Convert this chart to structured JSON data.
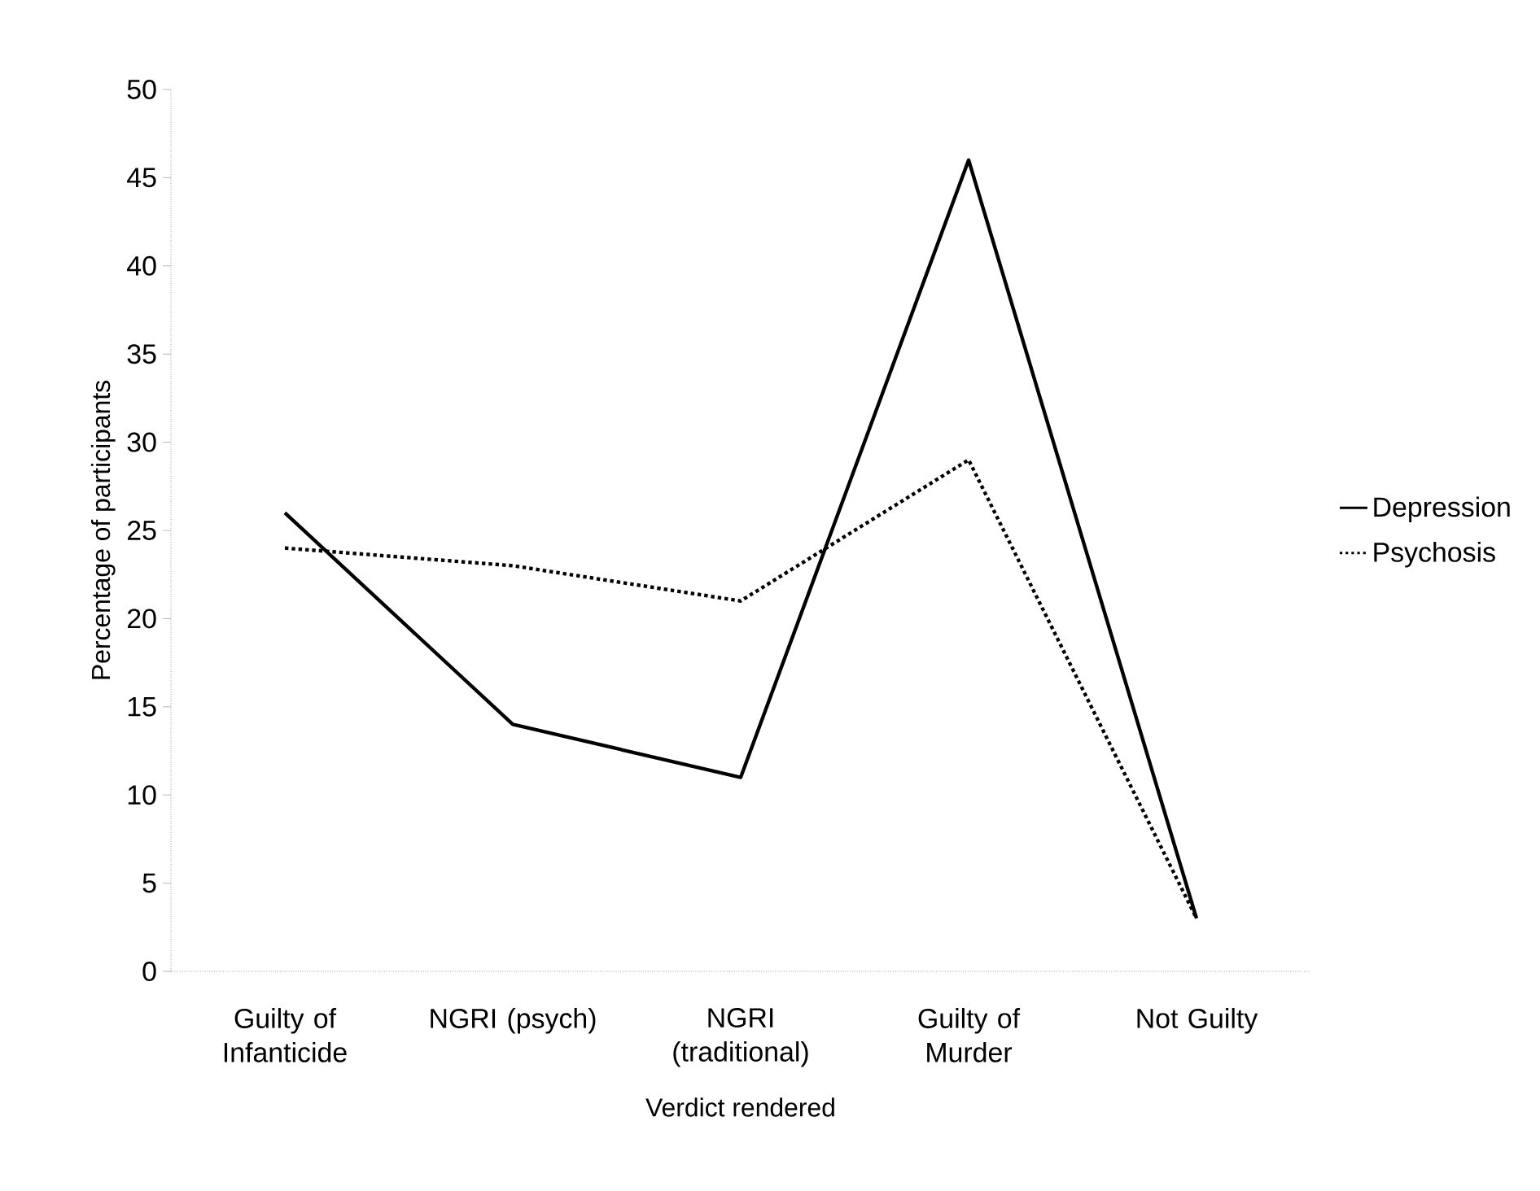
{
  "chart_data": {
    "type": "line",
    "xlabel": "Verdict rendered",
    "ylabel": "Percentage of participants",
    "categories": [
      "Guilty of Infanticide",
      "NGRI (psych)",
      "NGRI (traditional)",
      "Guilty of Murder",
      "Not Guilty"
    ],
    "series": [
      {
        "name": "Depression",
        "color": "#000000",
        "line_style": "solid",
        "values": [
          26,
          14,
          11,
          46,
          3
        ]
      },
      {
        "name": "Psychosis",
        "color": "#000000",
        "line_style": "dotted",
        "values": [
          24,
          23,
          21,
          29,
          3
        ]
      }
    ],
    "ylim": [
      0,
      50
    ],
    "yticks": [
      0,
      5,
      10,
      15,
      20,
      25,
      30,
      35,
      40,
      45,
      50
    ],
    "legend": "right"
  }
}
